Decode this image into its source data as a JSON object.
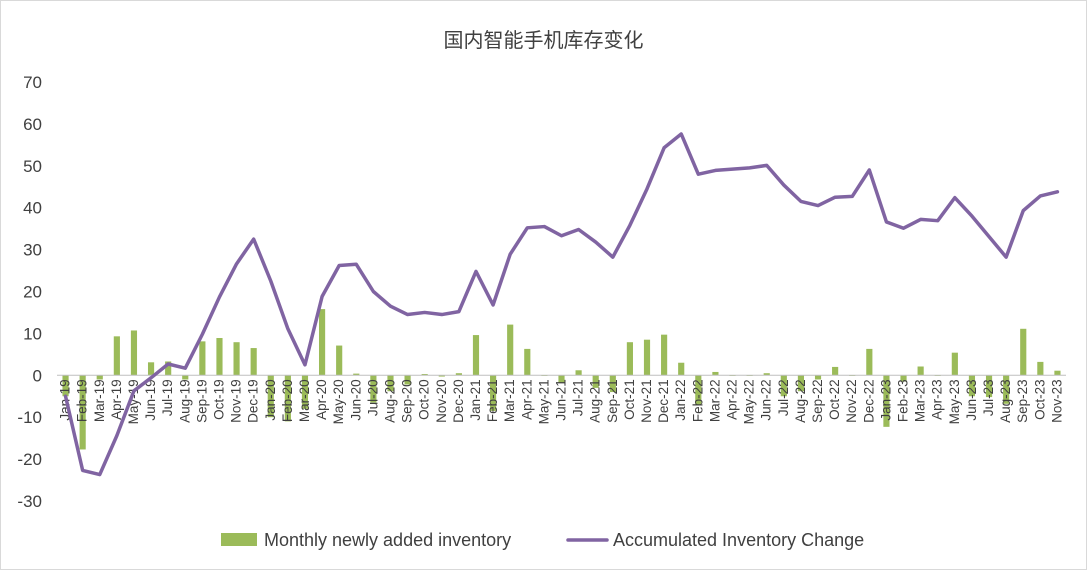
{
  "chart_data": {
    "type": "bar+line",
    "title": "国内智能手机库存变化",
    "xlabel": "",
    "ylabel": "",
    "ylim": [
      -30,
      70
    ],
    "yticks": [
      70,
      60,
      50,
      40,
      30,
      20,
      10,
      0,
      -10,
      -20,
      -30
    ],
    "grid": false,
    "legend_position": "bottom",
    "categories": [
      "Jan-19",
      "Feb-19",
      "Mar-19",
      "Apr-19",
      "May-19",
      "Jun-19",
      "Jul-19",
      "Aug-19",
      "Sep-19",
      "Oct-19",
      "Nov-19",
      "Dec-19",
      "Jan-20",
      "Feb-20",
      "Mar-20",
      "Apr-20",
      "May-20",
      "Jun-20",
      "Jul-20",
      "Aug-20",
      "Sep-20",
      "Oct-20",
      "Nov-20",
      "Dec-20",
      "Jan-21",
      "Feb-21",
      "Mar-21",
      "Apr-21",
      "May-21",
      "Jun-21",
      "Jul-21",
      "Aug-21",
      "Sep-21",
      "Oct-21",
      "Nov-21",
      "Dec-21",
      "Jan-22",
      "Feb-22",
      "Mar-22",
      "Apr-22",
      "May-22",
      "Jun-22",
      "Jul-22",
      "Aug-22",
      "Sep-22",
      "Oct-22",
      "Nov-22",
      "Dec-22",
      "Jan-23",
      "Feb-23",
      "Mar-23",
      "Apr-23",
      "May-23",
      "Jun-23",
      "Jul-23",
      "Aug-23",
      "Sep-23",
      "Oct-23",
      "Nov-23"
    ],
    "series": [
      {
        "name": "Monthly newly added inventory",
        "type": "bar",
        "color": "#9bbb59",
        "values": [
          -5,
          -17.7,
          -1,
          9.3,
          10.7,
          3.1,
          3.3,
          -1,
          8.1,
          8.9,
          7.9,
          6.5,
          -10,
          -11,
          -8,
          15.8,
          7.1,
          0.4,
          -6.5,
          -3.8,
          -2.2,
          0.3,
          -0.3,
          0.5,
          9.6,
          -8.5,
          12.1,
          6.3,
          0,
          -1.8,
          1.2,
          -3,
          -4,
          7.9,
          8.5,
          9.7,
          3,
          -7,
          0.8,
          0,
          0,
          0.5,
          -5,
          -3.8,
          -1,
          2,
          0,
          6.3,
          -12.3,
          -1.5,
          2.1,
          0,
          5.4,
          -5,
          -5.2,
          -6.8,
          11.1,
          3.2,
          1.1
        ]
      },
      {
        "name": "Accumulated Inventory Change",
        "type": "line",
        "color": "#8064a2",
        "values": [
          -5,
          -22.7,
          -23.7,
          -14.4,
          -3.7,
          -0.6,
          2.7,
          1.7,
          9.8,
          18.7,
          26.6,
          32.5,
          22.5,
          11.1,
          2.5,
          18.8,
          26.2,
          26.5,
          20,
          16.5,
          14.5,
          15,
          14.5,
          15.2,
          24.8,
          16.8,
          28.9,
          35.2,
          35.5,
          33.3,
          34.8,
          31.8,
          28.2,
          35.8,
          44.5,
          54.3,
          57.6,
          48,
          48.9,
          49.2,
          49.5,
          50.1,
          45.4,
          41.5,
          40.5,
          42.5,
          42.7,
          49,
          36.6,
          35.1,
          37.2,
          36.9,
          42.4,
          38,
          33.1,
          28.2,
          39.3,
          42.8,
          43.8
        ]
      }
    ]
  }
}
